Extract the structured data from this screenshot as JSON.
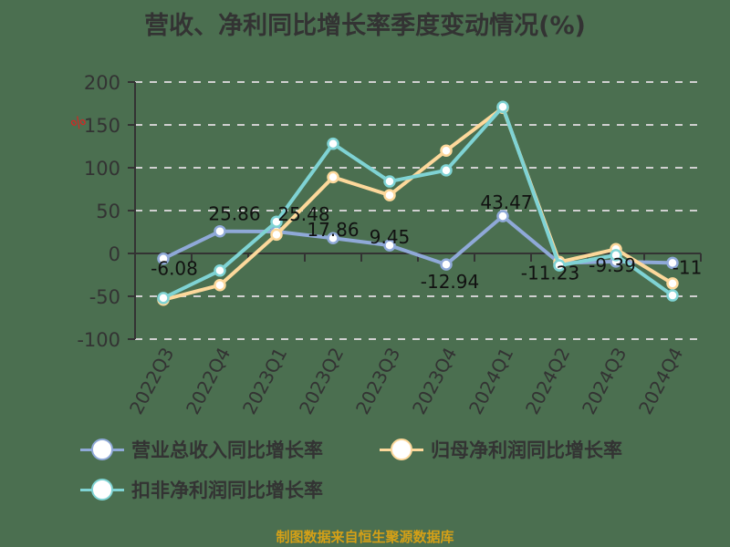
{
  "title": "营收、净利同比增长率季度变动情况(%)",
  "unit_label": "%",
  "source": "制图数据来自恒生聚源数据库",
  "legend": [
    {
      "label": "营业总收入同比增长率",
      "color": "#8fa9d8"
    },
    {
      "label": "归母净利润同比增长率",
      "color": "#fdd89b"
    },
    {
      "label": "扣非净利润同比增长率",
      "color": "#7fd3d4"
    }
  ],
  "chart_data": {
    "type": "line",
    "title": "营收、净利同比增长率季度变动情况(%)",
    "xlabel": "",
    "ylabel": "%",
    "ylim": [
      -100,
      200
    ],
    "yticks": [
      200,
      150,
      100,
      50,
      0,
      -50,
      -100
    ],
    "grid": true,
    "legend_position": "bottom",
    "categories": [
      "2022Q3",
      "2022Q4",
      "2023Q1",
      "2023Q2",
      "2023Q3",
      "2023Q4",
      "2024Q1",
      "2024Q2",
      "2024Q3",
      "2024Q4"
    ],
    "series": [
      {
        "name": "营业总收入同比增长率",
        "color": "#8fa9d8",
        "values": [
          -6.08,
          25.86,
          25.48,
          17.86,
          9.45,
          -12.94,
          43.47,
          -11.23,
          -9.39,
          -11
        ],
        "labels": [
          "-6.08",
          "25.86",
          "25.48",
          "17.86",
          "9.45",
          "-12.94",
          "43.47",
          "-11.23",
          "-9.39",
          "-11"
        ]
      },
      {
        "name": "归母净利润同比增长率",
        "color": "#fdd89b",
        "values": [
          -54,
          -37,
          22,
          89,
          68,
          120,
          170,
          -10,
          5,
          -35
        ]
      },
      {
        "name": "扣非净利润同比增长率",
        "color": "#7fd3d4",
        "values": [
          -52,
          -20,
          37,
          128,
          84,
          97,
          171,
          -14,
          -2,
          -49
        ]
      }
    ]
  }
}
